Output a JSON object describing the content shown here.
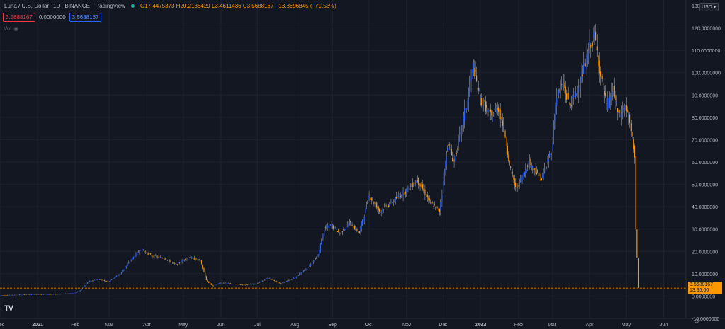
{
  "header": {
    "symbol": "Luna / U.S. Dollar",
    "interval": "1D",
    "exchange": "BINANCE",
    "source": "TradingView",
    "ohlc": "O17.4475373  H20.2138429  L3.4611436  C3.5688167  −13.8696845 (−79.53%)"
  },
  "price_boxes": {
    "bid": "3.5688167",
    "spread": "0.0000000",
    "ask": "3.5688167"
  },
  "volume_label": "Vol",
  "currency": "USD",
  "last_price": {
    "value": "3.5688167",
    "countdown": "13:36:00"
  },
  "colors": {
    "up": "#2962ff",
    "down": "#ff9800",
    "background": "#131722",
    "grid": "#1e222d"
  },
  "chart_data": {
    "type": "candlestick",
    "title": "",
    "xlabel": "",
    "ylabel": "",
    "ylim": [
      -10,
      130
    ],
    "y_ticks": [
      {
        "value": 120,
        "label": "120.0000000"
      },
      {
        "value": 110,
        "label": "110.0000000"
      },
      {
        "value": 100,
        "label": "100.0000000"
      },
      {
        "value": 90,
        "label": "90.0000000"
      },
      {
        "value": 80,
        "label": "80.0000000"
      },
      {
        "value": 70,
        "label": "70.0000000"
      },
      {
        "value": 60,
        "label": "60.0000000"
      },
      {
        "value": 50,
        "label": "50.0000000"
      },
      {
        "value": 40,
        "label": "40.0000000"
      },
      {
        "value": 30,
        "label": "30.0000000"
      },
      {
        "value": 20,
        "label": "20.0000000"
      },
      {
        "value": 10,
        "label": "10.0000000"
      },
      {
        "value": 0,
        "label": "0.0000000"
      },
      {
        "value": -10,
        "label": "-10.0000000"
      }
    ],
    "top_tick_label": "130",
    "x_ticks": [
      {
        "date": "2020-12-01",
        "label": "Dec"
      },
      {
        "date": "2021-01-01",
        "label": "2021"
      },
      {
        "date": "2021-02-01",
        "label": "Feb"
      },
      {
        "date": "2021-03-01",
        "label": "Mar"
      },
      {
        "date": "2021-04-01",
        "label": "Apr"
      },
      {
        "date": "2021-05-01",
        "label": "May"
      },
      {
        "date": "2021-06-01",
        "label": "Jun"
      },
      {
        "date": "2021-07-01",
        "label": "Jul"
      },
      {
        "date": "2021-08-01",
        "label": "Aug"
      },
      {
        "date": "2021-09-01",
        "label": "Sep"
      },
      {
        "date": "2021-10-01",
        "label": "Oct"
      },
      {
        "date": "2021-11-01",
        "label": "Nov"
      },
      {
        "date": "2021-12-01",
        "label": "Dec"
      },
      {
        "date": "2022-01-01",
        "label": "2022"
      },
      {
        "date": "2022-02-01",
        "label": "Feb"
      },
      {
        "date": "2022-03-01",
        "label": "Mar"
      },
      {
        "date": "2022-04-01",
        "label": "Apr"
      },
      {
        "date": "2022-05-01",
        "label": "May"
      },
      {
        "date": "2022-06-01",
        "label": "Jun"
      }
    ],
    "x_range": [
      "2020-12-01",
      "2022-06-17"
    ],
    "series": [
      {
        "date": "2020-12-01",
        "close": 0.4
      },
      {
        "date": "2021-01-01",
        "close": 0.7
      },
      {
        "date": "2021-01-20",
        "close": 0.9
      },
      {
        "date": "2021-02-01",
        "close": 1.5
      },
      {
        "date": "2021-02-05",
        "close": 2.5
      },
      {
        "date": "2021-02-12",
        "close": 6.5
      },
      {
        "date": "2021-02-20",
        "close": 7.5
      },
      {
        "date": "2021-02-28",
        "close": 6.5
      },
      {
        "date": "2021-03-10",
        "close": 10
      },
      {
        "date": "2021-03-20",
        "close": 17
      },
      {
        "date": "2021-03-27",
        "close": 21
      },
      {
        "date": "2021-04-05",
        "close": 18
      },
      {
        "date": "2021-04-15",
        "close": 17
      },
      {
        "date": "2021-04-25",
        "close": 14
      },
      {
        "date": "2021-05-05",
        "close": 17.5
      },
      {
        "date": "2021-05-15",
        "close": 16
      },
      {
        "date": "2021-05-20",
        "close": 7
      },
      {
        "date": "2021-05-25",
        "close": 4.5
      },
      {
        "date": "2021-06-01",
        "close": 6
      },
      {
        "date": "2021-06-10",
        "close": 5.5
      },
      {
        "date": "2021-06-20",
        "close": 5
      },
      {
        "date": "2021-06-30",
        "close": 5.5
      },
      {
        "date": "2021-07-10",
        "close": 8
      },
      {
        "date": "2021-07-20",
        "close": 5.5
      },
      {
        "date": "2021-07-31",
        "close": 8
      },
      {
        "date": "2021-08-10",
        "close": 12
      },
      {
        "date": "2021-08-20",
        "close": 18
      },
      {
        "date": "2021-08-25",
        "close": 30
      },
      {
        "date": "2021-08-31",
        "close": 32
      },
      {
        "date": "2021-09-07",
        "close": 28
      },
      {
        "date": "2021-09-15",
        "close": 33
      },
      {
        "date": "2021-09-23",
        "close": 28
      },
      {
        "date": "2021-10-01",
        "close": 45
      },
      {
        "date": "2021-10-10",
        "close": 38
      },
      {
        "date": "2021-10-20",
        "close": 42
      },
      {
        "date": "2021-10-31",
        "close": 47
      },
      {
        "date": "2021-11-10",
        "close": 52
      },
      {
        "date": "2021-11-20",
        "close": 42
      },
      {
        "date": "2021-11-28",
        "close": 38
      },
      {
        "date": "2021-12-05",
        "close": 68
      },
      {
        "date": "2021-12-10",
        "close": 60
      },
      {
        "date": "2021-12-15",
        "close": 72
      },
      {
        "date": "2021-12-20",
        "close": 85
      },
      {
        "date": "2021-12-26",
        "close": 103
      },
      {
        "date": "2022-01-01",
        "close": 88
      },
      {
        "date": "2022-01-10",
        "close": 80
      },
      {
        "date": "2022-01-15",
        "close": 85
      },
      {
        "date": "2022-01-20",
        "close": 75
      },
      {
        "date": "2022-01-25",
        "close": 58
      },
      {
        "date": "2022-01-30",
        "close": 48
      },
      {
        "date": "2022-02-10",
        "close": 60
      },
      {
        "date": "2022-02-20",
        "close": 52
      },
      {
        "date": "2022-02-28",
        "close": 65
      },
      {
        "date": "2022-03-05",
        "close": 90
      },
      {
        "date": "2022-03-10",
        "close": 95
      },
      {
        "date": "2022-03-15",
        "close": 85
      },
      {
        "date": "2022-03-20",
        "close": 90
      },
      {
        "date": "2022-03-26",
        "close": 100
      },
      {
        "date": "2022-04-01",
        "close": 112
      },
      {
        "date": "2022-04-05",
        "close": 117
      },
      {
        "date": "2022-04-10",
        "close": 98
      },
      {
        "date": "2022-04-15",
        "close": 85
      },
      {
        "date": "2022-04-20",
        "close": 92
      },
      {
        "date": "2022-04-25",
        "close": 80
      },
      {
        "date": "2022-04-30",
        "close": 85
      },
      {
        "date": "2022-05-03",
        "close": 80
      },
      {
        "date": "2022-05-06",
        "close": 70
      },
      {
        "date": "2022-05-08",
        "close": 63
      },
      {
        "date": "2022-05-09",
        "close": 30
      },
      {
        "date": "2022-05-10",
        "close": 17
      },
      {
        "date": "2022-05-11",
        "close": 3.5688167
      }
    ]
  }
}
